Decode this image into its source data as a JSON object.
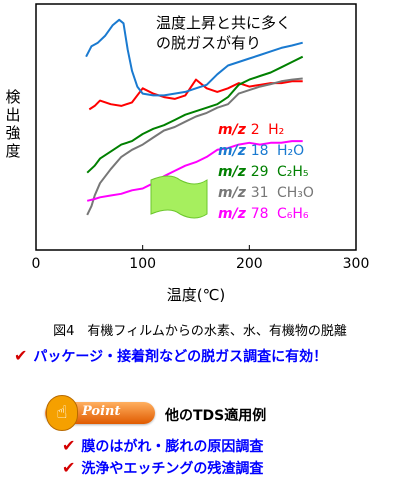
{
  "chart_data": {
    "type": "line",
    "xlabel": "温度(℃)",
    "ylabel": "検出強度",
    "xlim": [
      0,
      300
    ],
    "xticks": [
      0,
      100,
      200,
      300
    ],
    "annotation": "温度上昇と共に多くの脱ガスが有り",
    "series": [
      {
        "name": "m/z 2　H₂",
        "color": "#ff0000",
        "x": [
          50,
          55,
          60,
          70,
          80,
          90,
          100,
          110,
          120,
          130,
          140,
          150,
          160,
          170,
          180,
          190,
          200,
          210,
          220,
          230,
          240,
          250
        ],
        "y": [
          1.0,
          1.1,
          1.25,
          1.15,
          1.1,
          1.2,
          1.6,
          1.45,
          1.35,
          1.3,
          1.4,
          1.85,
          1.6,
          1.5,
          1.6,
          1.75,
          1.65,
          1.7,
          1.75,
          1.75,
          1.8,
          1.8
        ]
      },
      {
        "name": "m/z 18 H₂O",
        "color": "#1a7ad0",
        "x": [
          47,
          52,
          58,
          65,
          72,
          78,
          82,
          86,
          90,
          95,
          100,
          110,
          120,
          130,
          140,
          150,
          160,
          170,
          180,
          190,
          200,
          210,
          220,
          230,
          240,
          250
        ],
        "y": [
          2.5,
          2.8,
          2.9,
          3.1,
          3.4,
          3.55,
          3.45,
          2.7,
          2.1,
          1.65,
          1.45,
          1.4,
          1.4,
          1.45,
          1.5,
          1.6,
          1.7,
          2.0,
          2.25,
          2.35,
          2.45,
          2.55,
          2.65,
          2.75,
          2.82,
          2.9
        ]
      },
      {
        "name": "m/z 29 C₂H₅",
        "color": "#008000",
        "x": [
          48,
          55,
          60,
          70,
          80,
          90,
          100,
          110,
          120,
          130,
          140,
          150,
          160,
          170,
          180,
          190,
          200,
          210,
          220,
          230,
          240,
          250
        ],
        "y": [
          -0.8,
          -0.6,
          -0.4,
          -0.2,
          0.0,
          0.1,
          0.3,
          0.45,
          0.55,
          0.7,
          0.85,
          0.95,
          1.05,
          1.15,
          1.35,
          1.7,
          1.85,
          1.95,
          2.05,
          2.2,
          2.35,
          2.5
        ]
      },
      {
        "name": "m/z 31 CH₃O",
        "color": "#777777",
        "x": [
          48,
          52,
          55,
          60,
          70,
          80,
          90,
          100,
          110,
          120,
          130,
          140,
          150,
          160,
          170,
          180,
          190,
          200,
          210,
          220,
          230,
          240,
          250
        ],
        "y": [
          -2.0,
          -1.75,
          -1.45,
          -1.1,
          -0.7,
          -0.35,
          -0.15,
          0.0,
          0.2,
          0.4,
          0.5,
          0.65,
          0.8,
          0.9,
          1.05,
          1.15,
          1.45,
          1.55,
          1.65,
          1.72,
          1.8,
          1.85,
          1.88
        ]
      },
      {
        "name": "m/z 78 C₆H₆",
        "color": "#ff00ff",
        "x": [
          48,
          55,
          60,
          70,
          80,
          90,
          100,
          110,
          120,
          130,
          140,
          150,
          160,
          170,
          180,
          190,
          200,
          210,
          220,
          230,
          240,
          250
        ],
        "y": [
          -1.6,
          -1.55,
          -1.5,
          -1.45,
          -1.4,
          -1.3,
          -1.25,
          -1.1,
          -0.9,
          -0.75,
          -0.6,
          -0.5,
          -0.35,
          -0.15,
          -0.1,
          0.0,
          0.05,
          0.0,
          0.05,
          0.05,
          0.1,
          0.1
        ]
      }
    ],
    "legend": [
      {
        "prefix": "m/z",
        "num": "2",
        "formula": "H₂",
        "color": "#ff0000"
      },
      {
        "prefix": "m/z",
        "num": "18",
        "formula": "H₂O",
        "color": "#1a7ad0"
      },
      {
        "prefix": "m/z",
        "num": "29",
        "formula": "C₂H₅",
        "color": "#008000"
      },
      {
        "prefix": "m/z",
        "num": "31",
        "formula": "CH₃O",
        "color": "#777777"
      },
      {
        "prefix": "m/z",
        "num": "78",
        "formula": "C₆H₆",
        "color": "#ff00ff"
      }
    ]
  },
  "caption": "図4　有機フィルムからの水素、水、有機物の脱離",
  "note": "パッケージ・接着剤などの脱ガス調査に有効！",
  "point": {
    "badge": "Point",
    "title": "他のTDS適用例",
    "items": [
      "膜のはがれ・膨れの原因調査",
      "洗浄やエッチングの残渣調査"
    ]
  }
}
